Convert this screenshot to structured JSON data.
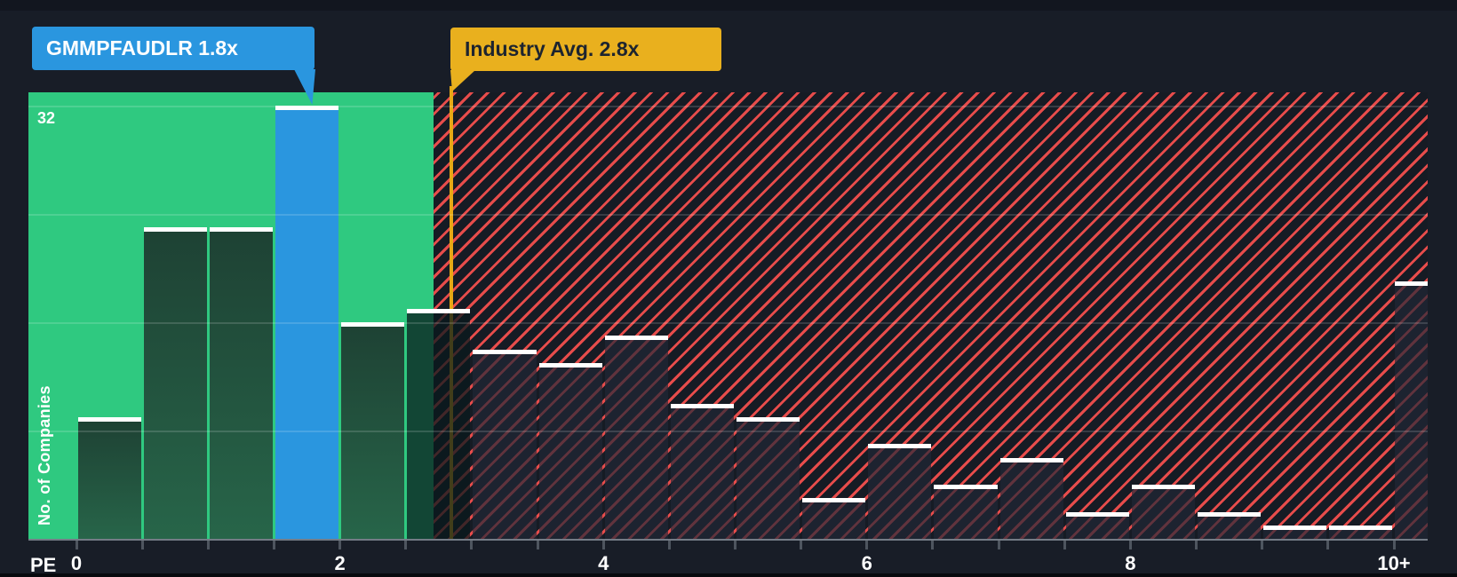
{
  "tooltips": {
    "company": {
      "label": "GMMPFAUDLR 1.8x"
    },
    "industry": {
      "label": "Industry Avg. 2.8x"
    }
  },
  "axis": {
    "x_label": "PE",
    "y_label": "No. of Companies",
    "y_max_label": "32"
  },
  "chart_data": {
    "type": "bar",
    "xlabel": "PE",
    "ylabel": "No. of Companies",
    "ylim": [
      0,
      32
    ],
    "gridline_values": [
      8,
      16,
      24,
      32
    ],
    "x_tick_step": 0.5,
    "x_tick_labels": [
      "0",
      "2",
      "4",
      "6",
      "8",
      "10+"
    ],
    "company": {
      "name": "GMMPFAUDLR",
      "pe_ratio": "1.8x",
      "highlight_bin": "1.5-2"
    },
    "industry_avg": {
      "pe_ratio": "2.8x",
      "x_value": 2.8
    },
    "colors": {
      "company_blue": "#2a96df",
      "industry_yellow": "#e9b01e",
      "below_avg_green": "#2fc980",
      "above_avg_red": "#e74c4b"
    },
    "bins": [
      {
        "range": "0-0.5",
        "count": 9,
        "zone": "green"
      },
      {
        "range": "0.5-1",
        "count": 23,
        "zone": "green"
      },
      {
        "range": "1-1.5",
        "count": 23,
        "zone": "green"
      },
      {
        "range": "1.5-2",
        "count": 32,
        "zone": "company"
      },
      {
        "range": "2-2.5",
        "count": 16,
        "zone": "green"
      },
      {
        "range": "2.5-3",
        "count": 17,
        "zone": "straddle"
      },
      {
        "range": "3-3.5",
        "count": 14,
        "zone": "red"
      },
      {
        "range": "3.5-4",
        "count": 13,
        "zone": "red"
      },
      {
        "range": "4-4.5",
        "count": 15,
        "zone": "red"
      },
      {
        "range": "4.5-5",
        "count": 10,
        "zone": "red"
      },
      {
        "range": "5-5.5",
        "count": 9,
        "zone": "red"
      },
      {
        "range": "5.5-6",
        "count": 3,
        "zone": "red"
      },
      {
        "range": "6-6.5",
        "count": 7,
        "zone": "red"
      },
      {
        "range": "6.5-7",
        "count": 4,
        "zone": "red"
      },
      {
        "range": "7-7.5",
        "count": 6,
        "zone": "red"
      },
      {
        "range": "7.5-8",
        "count": 2,
        "zone": "red"
      },
      {
        "range": "8-8.5",
        "count": 4,
        "zone": "red"
      },
      {
        "range": "8.5-9",
        "count": 2,
        "zone": "red"
      },
      {
        "range": "9-9.5",
        "count": 1,
        "zone": "red"
      },
      {
        "range": "9.5-10",
        "count": 1,
        "zone": "red"
      },
      {
        "range": "10+",
        "count": 19,
        "zone": "red"
      }
    ]
  }
}
